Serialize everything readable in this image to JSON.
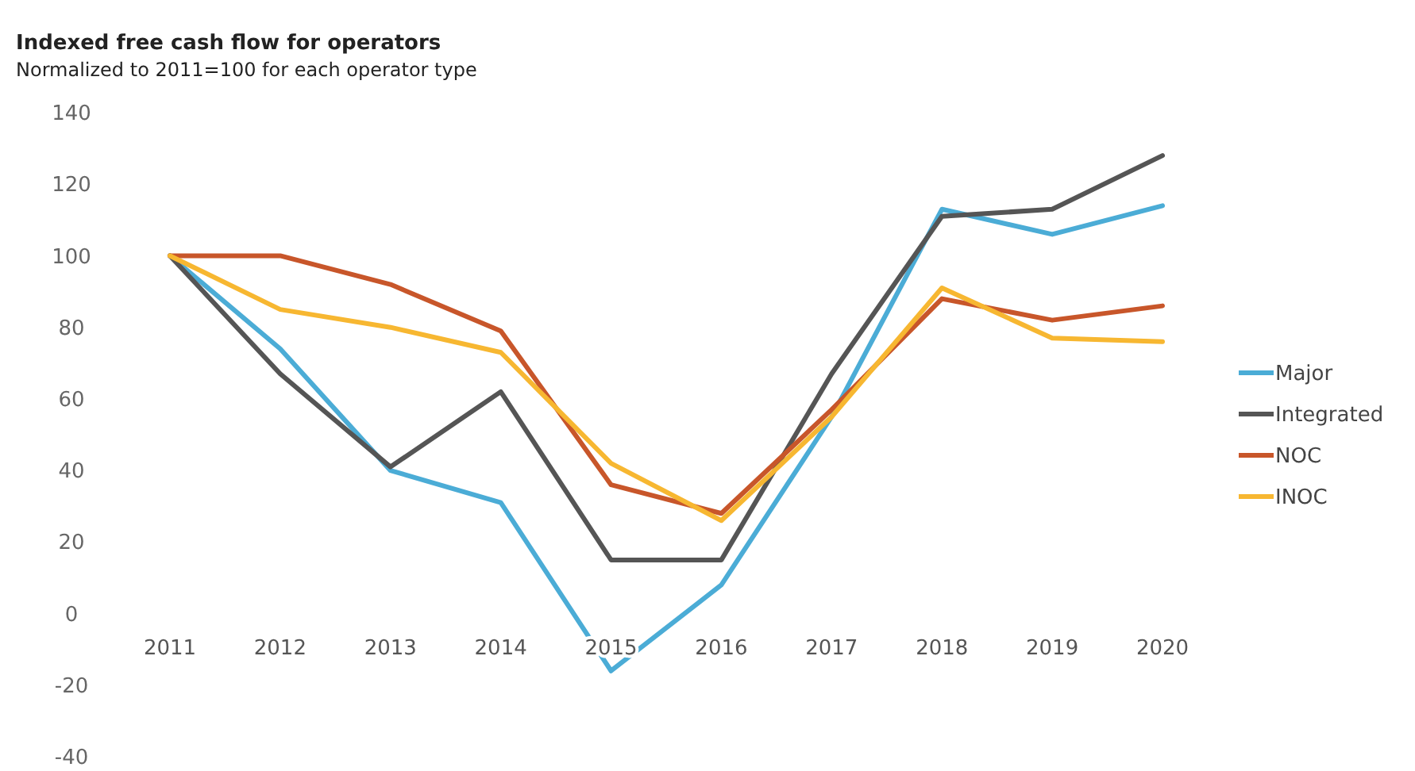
{
  "chart_data": {
    "type": "line",
    "title": "Indexed free cash flow for operators",
    "subtitle": "Normalized to 2011=100 for each operator type",
    "categories": [
      "2011",
      "2012",
      "2013",
      "2014",
      "2015",
      "2016",
      "2017",
      "2018",
      "2019",
      "2020"
    ],
    "series": [
      {
        "name": "Major",
        "color": "#4bacd6",
        "values": [
          100,
          74,
          40,
          31,
          -16,
          8,
          55,
          113,
          106,
          114
        ]
      },
      {
        "name": "Integrated",
        "color": "#555555",
        "values": [
          100,
          67,
          41,
          62,
          15,
          15,
          67,
          111,
          113,
          128
        ]
      },
      {
        "name": "NOC",
        "color": "#c8562a",
        "values": [
          100,
          100,
          92,
          79,
          36,
          28,
          57,
          88,
          82,
          86
        ]
      },
      {
        "name": "INOC",
        "color": "#f7b731",
        "values": [
          100,
          85,
          80,
          73,
          42,
          26,
          55,
          91,
          77,
          76
        ]
      }
    ],
    "ylim": [
      -40,
      140
    ],
    "yticks": [
      -40,
      -20,
      0,
      20,
      40,
      60,
      80,
      100,
      120,
      140
    ],
    "grid": false,
    "legend": "right",
    "marker": "none",
    "line_style": "solid"
  }
}
